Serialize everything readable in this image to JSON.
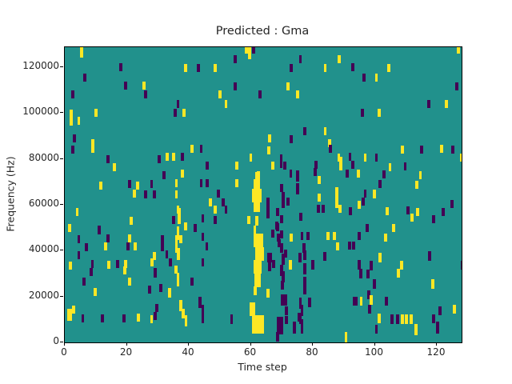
{
  "figure": {
    "title": "Predicted : Gma",
    "xlabel": "Time step",
    "ylabel": "Frequency (Hz)"
  },
  "chart_data": {
    "type": "heatmap",
    "title": "Predicted : Gma",
    "xlabel": "Time step",
    "ylabel": "Frequency (Hz)",
    "xlim": [
      0,
      128
    ],
    "ylim": [
      0,
      128700
    ],
    "x_ticks": [
      0,
      20,
      40,
      60,
      80,
      100,
      120
    ],
    "y_ticks": [
      0,
      20000,
      40000,
      60000,
      80000,
      100000,
      120000
    ],
    "grid": false,
    "legend": null,
    "colormap": {
      "background": "#21918c",
      "yellow": "#fde725",
      "purple": "#440154"
    },
    "marks_format": "[t_step, freq_kHz_center, color(y|p), width_steps(opt,def 1), height_kHz(opt,def 3.5)]",
    "marks": [
      [
        5,
        127,
        "y",
        1,
        6
      ],
      [
        58,
        127.5,
        "y"
      ],
      [
        60.5,
        127.5,
        "p"
      ],
      [
        126.5,
        127.5,
        "y"
      ],
      [
        59,
        126.5,
        "y",
        1,
        6
      ],
      [
        54.5,
        123.5,
        "p"
      ],
      [
        75.5,
        123.5,
        "p"
      ],
      [
        88,
        123.5,
        "y"
      ],
      [
        17.5,
        120,
        "p"
      ],
      [
        38.5,
        119.5,
        "y"
      ],
      [
        42.5,
        119.5,
        "p"
      ],
      [
        48,
        119.5,
        "y"
      ],
      [
        72.5,
        119.5,
        "p"
      ],
      [
        83.5,
        119.5,
        "y"
      ],
      [
        92.5,
        120,
        "p"
      ],
      [
        104,
        119.5,
        "y"
      ],
      [
        6,
        115.5,
        "p"
      ],
      [
        96,
        115.5,
        "p"
      ],
      [
        100,
        115.5,
        "y"
      ],
      [
        19,
        112,
        "p"
      ],
      [
        25,
        112,
        "y"
      ],
      [
        54.5,
        111.5,
        "p"
      ],
      [
        71.5,
        111.5,
        "y"
      ],
      [
        126,
        111.5,
        "p"
      ],
      [
        2,
        108,
        "p"
      ],
      [
        25.5,
        108,
        "p"
      ],
      [
        49.5,
        108,
        "y"
      ],
      [
        62.5,
        108,
        "p"
      ],
      [
        74.5,
        108,
        "y"
      ],
      [
        36,
        104,
        "p"
      ],
      [
        51.5,
        104,
        "y"
      ],
      [
        117,
        104,
        "p"
      ],
      [
        122.5,
        104,
        "y"
      ],
      [
        1.5,
        98,
        "y",
        1,
        7
      ],
      [
        4,
        96.5,
        "y"
      ],
      [
        9.5,
        100,
        "y"
      ],
      [
        35,
        100,
        "p"
      ],
      [
        38,
        100,
        "y"
      ],
      [
        95.5,
        100,
        "p"
      ],
      [
        101,
        100,
        "y"
      ],
      [
        77,
        92,
        "p"
      ],
      [
        83.5,
        92,
        "y"
      ],
      [
        2.5,
        89,
        "p"
      ],
      [
        65.5,
        89,
        "y"
      ],
      [
        72.5,
        88.5,
        "p"
      ],
      [
        8.5,
        87,
        "y"
      ],
      [
        85,
        87,
        "y"
      ],
      [
        40.5,
        84.5,
        "y"
      ],
      [
        43.5,
        84.5,
        "p"
      ],
      [
        2,
        84,
        "p"
      ],
      [
        8.5,
        84.5,
        "y"
      ],
      [
        65.3,
        83.8,
        "y"
      ],
      [
        85.1,
        84.4,
        "p"
      ],
      [
        108.5,
        84,
        "y"
      ],
      [
        114.5,
        84,
        "p"
      ],
      [
        121,
        84.4,
        "y"
      ],
      [
        124.6,
        84,
        "p"
      ],
      [
        13.5,
        80,
        "p"
      ],
      [
        30,
        80,
        "p"
      ],
      [
        32.5,
        81,
        "y"
      ],
      [
        34.5,
        81,
        "y"
      ],
      [
        37.5,
        81,
        "p"
      ],
      [
        59.5,
        80.5,
        "y"
      ],
      [
        69.3,
        79,
        "p",
        1,
        6
      ],
      [
        87.9,
        80.6,
        "y"
      ],
      [
        91.5,
        80.9,
        "p"
      ],
      [
        96.4,
        80.6,
        "y"
      ],
      [
        100,
        80.6,
        "p"
      ],
      [
        127.4,
        80.6,
        "y"
      ],
      [
        15.5,
        76.5,
        "y"
      ],
      [
        45.5,
        77,
        "p"
      ],
      [
        55,
        77,
        "y"
      ],
      [
        66.6,
        77.1,
        "y"
      ],
      [
        70.4,
        77,
        "p"
      ],
      [
        80.5,
        77.5,
        "p"
      ],
      [
        88.5,
        78,
        "y",
        1,
        6
      ],
      [
        92.4,
        77.5,
        "p"
      ],
      [
        104.4,
        76.5,
        "y"
      ],
      [
        109.3,
        76.7,
        "p"
      ],
      [
        31.5,
        73,
        "p"
      ],
      [
        37.5,
        73.5,
        "y"
      ],
      [
        62,
        73,
        "y"
      ],
      [
        72.4,
        73.6,
        "p"
      ],
      [
        74.5,
        72.5,
        "p",
        1,
        5
      ],
      [
        80.2,
        74.2,
        "p"
      ],
      [
        90.7,
        73.6,
        "p"
      ],
      [
        94.3,
        73.6,
        "y"
      ],
      [
        102.5,
        73.3,
        "p"
      ],
      [
        61.5,
        72.5,
        "y"
      ],
      [
        114.2,
        72.8,
        "y"
      ],
      [
        11,
        68.5,
        "y"
      ],
      [
        20.5,
        69,
        "p"
      ],
      [
        23,
        68.5,
        "y"
      ],
      [
        27.5,
        69,
        "p"
      ],
      [
        35.5,
        69.5,
        "y"
      ],
      [
        43.5,
        69.5,
        "p"
      ],
      [
        45.5,
        69.5,
        "p"
      ],
      [
        55,
        69.5,
        "y"
      ],
      [
        61,
        68.5,
        "y",
        2,
        5
      ],
      [
        69.5,
        67.2,
        "p"
      ],
      [
        74.5,
        67,
        "p",
        1,
        5
      ],
      [
        81.6,
        70.7,
        "y"
      ],
      [
        101.2,
        69,
        "p"
      ],
      [
        113.1,
        68.6,
        "y"
      ],
      [
        22,
        65,
        "y"
      ],
      [
        25.5,
        64.5,
        "p"
      ],
      [
        28.5,
        64.5,
        "p"
      ],
      [
        35.5,
        64.5,
        "y"
      ],
      [
        49,
        65,
        "p"
      ],
      [
        60.5,
        64,
        "y",
        3,
        6
      ],
      [
        65,
        58.5,
        "p",
        1,
        9
      ],
      [
        81.6,
        63.1,
        "y"
      ],
      [
        87.2,
        63,
        "y",
        1,
        9
      ],
      [
        96.4,
        64.9,
        "p"
      ],
      [
        99.3,
        64.7,
        "y"
      ],
      [
        69.9,
        62,
        "p",
        1,
        7
      ],
      [
        71.6,
        61.4,
        "p"
      ],
      [
        95.7,
        61.4,
        "p"
      ],
      [
        94.5,
        60,
        "y"
      ],
      [
        46.5,
        61,
        "y"
      ],
      [
        50.5,
        61,
        "p"
      ],
      [
        61,
        59,
        "y",
        2,
        4
      ],
      [
        81.2,
        58.2,
        "p"
      ],
      [
        82.8,
        58.2,
        "p"
      ],
      [
        88.3,
        58.2,
        "y"
      ],
      [
        91.7,
        57.3,
        "p"
      ],
      [
        103.5,
        57.3,
        "y"
      ],
      [
        110.2,
        57.7,
        "p"
      ],
      [
        113.2,
        57,
        "y"
      ],
      [
        121.6,
        57,
        "p"
      ],
      [
        124.4,
        60.5,
        "p"
      ],
      [
        3.5,
        57,
        "y"
      ],
      [
        36,
        58,
        "y"
      ],
      [
        48,
        58,
        "y"
      ],
      [
        51.5,
        58,
        "p"
      ],
      [
        68.2,
        57,
        "p"
      ],
      [
        36.5,
        55,
        "y",
        1,
        7
      ],
      [
        44,
        54,
        "p"
      ],
      [
        48,
        53.5,
        "p"
      ],
      [
        34.5,
        53.5,
        "p"
      ],
      [
        58.9,
        53.5,
        "y"
      ],
      [
        61.5,
        53,
        "y",
        1,
        4
      ],
      [
        69.5,
        53.8,
        "p"
      ],
      [
        75.6,
        54.7,
        "p"
      ],
      [
        111.5,
        54.4,
        "y"
      ],
      [
        118.5,
        53.8,
        "p"
      ],
      [
        21,
        53,
        "y"
      ],
      [
        1,
        50,
        "y"
      ],
      [
        10.5,
        49,
        "p"
      ],
      [
        38.5,
        50.5,
        "y"
      ],
      [
        41.5,
        50,
        "p"
      ],
      [
        60.8,
        49,
        "y"
      ],
      [
        67.8,
        51,
        "p"
      ],
      [
        68.2,
        50.3,
        "p"
      ],
      [
        97,
        49.8,
        "p"
      ],
      [
        105.5,
        49.8,
        "y"
      ],
      [
        4,
        45,
        "p"
      ],
      [
        13.5,
        45.5,
        "p"
      ],
      [
        20.5,
        45.5,
        "y"
      ],
      [
        31,
        45,
        "p"
      ],
      [
        35.5,
        45,
        "y"
      ],
      [
        37,
        45,
        "y"
      ],
      [
        36,
        47.5,
        "y",
        1,
        6
      ],
      [
        44,
        46,
        "p"
      ],
      [
        61,
        44.5,
        "y",
        3,
        6
      ],
      [
        66.6,
        47.4,
        "p"
      ],
      [
        69.5,
        47,
        "p"
      ],
      [
        68.3,
        45.7,
        "p"
      ],
      [
        72.6,
        45.7,
        "y"
      ],
      [
        76,
        46.3,
        "p"
      ],
      [
        77.9,
        46.3,
        "p"
      ],
      [
        84.5,
        46.5,
        "y"
      ],
      [
        86.5,
        46.5,
        "y"
      ],
      [
        94.5,
        46.5,
        "p"
      ],
      [
        103,
        45.7,
        "y"
      ],
      [
        68.6,
        43.3,
        "p"
      ],
      [
        6.4,
        41.5,
        "p"
      ],
      [
        12.7,
        41.8,
        "y"
      ],
      [
        19.8,
        42,
        "p"
      ],
      [
        22.2,
        41.8,
        "y"
      ],
      [
        31,
        41.5,
        "p"
      ],
      [
        35.5,
        41.5,
        "y",
        1,
        5
      ],
      [
        45.3,
        42,
        "p"
      ],
      [
        87.4,
        42,
        "y"
      ],
      [
        91.4,
        42.3,
        "p"
      ],
      [
        92.6,
        42.3,
        "p"
      ],
      [
        61.3,
        38.5,
        "y",
        3,
        6
      ],
      [
        69.4,
        41.2,
        "p",
        1,
        4
      ],
      [
        76.7,
        41.2,
        "p",
        1,
        4
      ],
      [
        4,
        38,
        "p"
      ],
      [
        28.4,
        37.7,
        "y"
      ],
      [
        32.4,
        38.3,
        "p"
      ],
      [
        36.2,
        38.5,
        "y",
        1,
        5
      ],
      [
        65.3,
        37,
        "p",
        1.5,
        4
      ],
      [
        70,
        36.3,
        "p",
        1,
        5
      ],
      [
        70.8,
        38.7,
        "p"
      ],
      [
        75.4,
        36.9,
        "p",
        1,
        4
      ],
      [
        77,
        38,
        "p",
        1,
        4
      ],
      [
        83.4,
        37.4,
        "p",
        1,
        4
      ],
      [
        101.2,
        36.9,
        "y",
        1,
        4
      ],
      [
        117.1,
        37.7,
        "p",
        1,
        4
      ],
      [
        1.3,
        33.4,
        "y"
      ],
      [
        8.4,
        34.2,
        "p"
      ],
      [
        13.6,
        33.9,
        "y"
      ],
      [
        16.5,
        34.2,
        "p"
      ],
      [
        19,
        34.2,
        "y"
      ],
      [
        27.7,
        35,
        "y"
      ],
      [
        33.5,
        34.8,
        "p"
      ],
      [
        44,
        34.8,
        "p"
      ],
      [
        61,
        33,
        "y",
        2.5,
        6
      ],
      [
        65.5,
        33.5,
        "p",
        1,
        5
      ],
      [
        66.9,
        34.1,
        "p"
      ],
      [
        69.5,
        31.5,
        "p",
        1,
        5
      ],
      [
        72.3,
        33.9,
        "y",
        1,
        4
      ],
      [
        77,
        32,
        "p",
        1,
        5
      ],
      [
        79.5,
        33.9,
        "p",
        1,
        4
      ],
      [
        94.5,
        33.9,
        "p",
        1,
        4
      ],
      [
        98.4,
        33.5,
        "p",
        1,
        4
      ],
      [
        108.1,
        33.6,
        "y",
        1,
        4
      ],
      [
        127.7,
        33.6,
        "p",
        1,
        4
      ],
      [
        8,
        30.7,
        "p"
      ],
      [
        18.8,
        31.3,
        "y"
      ],
      [
        28.6,
        30.3,
        "p",
        1,
        4
      ],
      [
        35.4,
        31.9,
        "y"
      ],
      [
        95,
        30,
        "p",
        1,
        4
      ],
      [
        107.2,
        30.1,
        "y",
        1,
        4
      ],
      [
        97.3,
        29.8,
        "p",
        1,
        4
      ],
      [
        70,
        28.5,
        "p",
        1,
        5
      ],
      [
        5.6,
        26.6,
        "p"
      ],
      [
        20.5,
        26.6,
        "y"
      ],
      [
        36,
        27.5,
        "y",
        1,
        6
      ],
      [
        40.6,
        26.6,
        "p"
      ],
      [
        61.2,
        27,
        "y",
        2,
        6
      ],
      [
        69.8,
        25,
        "p",
        1,
        4
      ],
      [
        77,
        26,
        "p",
        1,
        5
      ],
      [
        99.4,
        25.5,
        "p",
        1,
        4
      ],
      [
        118.2,
        25.5,
        "y",
        1,
        4
      ],
      [
        9.3,
        22,
        "y"
      ],
      [
        26.8,
        22.9,
        "p"
      ],
      [
        30.5,
        23.7,
        "p"
      ],
      [
        33.3,
        21.7,
        "y",
        1,
        4
      ],
      [
        61,
        22.5,
        "y",
        1,
        4
      ],
      [
        65,
        21.4,
        "y",
        1,
        4
      ],
      [
        69.7,
        18.5,
        "p",
        2,
        5
      ],
      [
        77,
        23,
        "p",
        1,
        4
      ],
      [
        97.5,
        20.8,
        "p",
        1,
        4
      ],
      [
        29.2,
        15,
        "p"
      ],
      [
        2.4,
        14.4,
        "y"
      ],
      [
        37,
        16,
        "y",
        1,
        5
      ],
      [
        43.2,
        17.5,
        "p",
        1,
        5
      ],
      [
        44,
        14,
        "p",
        1,
        5
      ],
      [
        71,
        13.8,
        "p",
        1,
        4
      ],
      [
        75.5,
        17,
        "p",
        1,
        5
      ],
      [
        78.5,
        17.5,
        "p",
        1,
        4
      ],
      [
        93,
        18,
        "p",
        1.5,
        4
      ],
      [
        95.1,
        17.9,
        "y",
        1,
        4
      ],
      [
        98.4,
        18.5,
        "y",
        1,
        4
      ],
      [
        103.3,
        17.9,
        "p",
        1,
        4
      ],
      [
        59.5,
        14.5,
        "y",
        2,
        6
      ],
      [
        76,
        14,
        "p",
        1,
        5
      ],
      [
        97.9,
        14.4,
        "p",
        1,
        4
      ],
      [
        120.5,
        13.8,
        "p",
        1,
        4
      ],
      [
        125.2,
        14.4,
        "y",
        1,
        4
      ],
      [
        0.7,
        12,
        "y",
        1.5,
        5
      ],
      [
        5.3,
        10.4,
        "p"
      ],
      [
        11.6,
        10.6,
        "p"
      ],
      [
        18.5,
        10.6,
        "p"
      ],
      [
        23.3,
        10.7,
        "y"
      ],
      [
        27.5,
        10.2,
        "y"
      ],
      [
        28.6,
        11.5,
        "p"
      ],
      [
        37.6,
        12.5,
        "y",
        1,
        4
      ],
      [
        38.6,
        9.5,
        "y",
        1,
        5
      ],
      [
        44,
        10,
        "p"
      ],
      [
        53.3,
        10.1,
        "p",
        1,
        4
      ],
      [
        60.3,
        8,
        "y",
        4,
        8
      ],
      [
        68.5,
        8.5,
        "p",
        2,
        5
      ],
      [
        71,
        9.8,
        "p"
      ],
      [
        75.5,
        9.8,
        "p"
      ],
      [
        75,
        11,
        "p",
        1,
        4
      ],
      [
        101,
        10.5,
        "y",
        1,
        4
      ],
      [
        105,
        10.1,
        "p",
        1,
        4
      ],
      [
        106.8,
        10.1,
        "p",
        1,
        4
      ],
      [
        108.3,
        10.1,
        "y",
        1,
        4
      ],
      [
        109.8,
        10.1,
        "y",
        1,
        4
      ],
      [
        111.3,
        10.1,
        "y",
        1,
        4
      ],
      [
        118.4,
        10.3,
        "p",
        1,
        4
      ],
      [
        68.5,
        6,
        "p",
        2,
        5
      ],
      [
        73.5,
        6.5,
        "p",
        1,
        5
      ],
      [
        76,
        7,
        "p",
        1,
        6
      ],
      [
        100,
        5.7,
        "p",
        1,
        4
      ],
      [
        112.8,
        5.5,
        "y",
        1,
        5
      ],
      [
        119.8,
        6.5,
        "p",
        1,
        5
      ],
      [
        68.2,
        2.5,
        "p",
        1,
        4
      ],
      [
        90.2,
        2.2,
        "y",
        1,
        5
      ]
    ]
  }
}
